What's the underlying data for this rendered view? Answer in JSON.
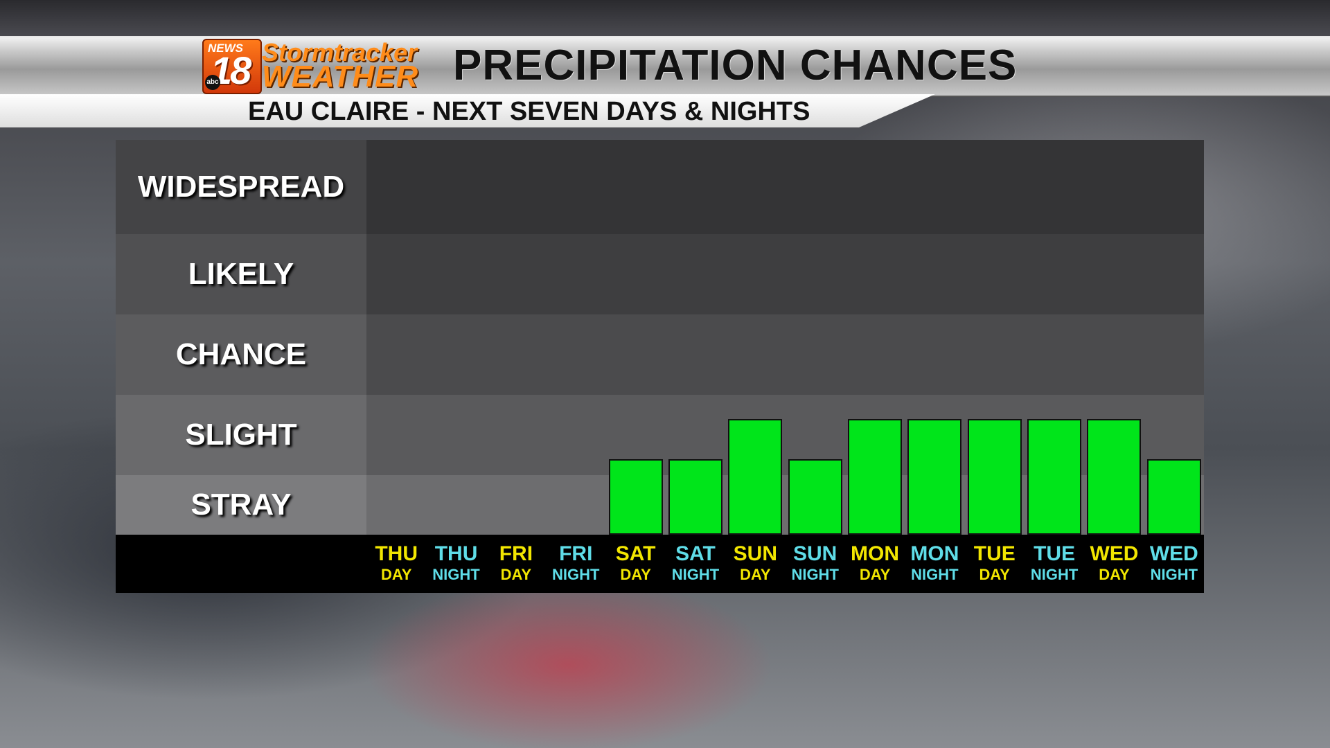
{
  "header": {
    "logo": {
      "news": "NEWS",
      "number": "18",
      "network": "abc",
      "line1": "Stormtracker",
      "line2": "WEATHER"
    },
    "title": "PRECIPITATION CHANCES",
    "subtitle": "EAU CLAIRE - NEXT SEVEN DAYS & NIGHTS"
  },
  "colors": {
    "bar": "#00e51a",
    "day_label": "#f2e600",
    "night_label": "#5fdde8",
    "bands": [
      "#343436",
      "#3e3e40",
      "#4b4b4d",
      "#5a5a5c",
      "#6d6d6f"
    ],
    "label_bands": [
      "#444446",
      "#505052",
      "#5c5c5e",
      "#6a6a6c",
      "#7c7c7e"
    ]
  },
  "chart_data": {
    "type": "bar",
    "title": "PRECIPITATION CHANCES",
    "subtitle": "EAU CLAIRE - NEXT SEVEN DAYS & NIGHTS",
    "y_categories": [
      "WIDESPREAD",
      "LIKELY",
      "CHANCE",
      "SLIGHT",
      "STRAY"
    ],
    "y_scale": "ordinal levels from bottom: 0 = none, 1 = STRAY, 2 = SLIGHT, 3 = CHANCE, 4 = LIKELY, 5 = WIDESPREAD",
    "categories": [
      {
        "day": "THU",
        "period": "DAY"
      },
      {
        "day": "THU",
        "period": "NIGHT"
      },
      {
        "day": "FRI",
        "period": "DAY"
      },
      {
        "day": "FRI",
        "period": "NIGHT"
      },
      {
        "day": "SAT",
        "period": "DAY"
      },
      {
        "day": "SAT",
        "period": "NIGHT"
      },
      {
        "day": "SUN",
        "period": "DAY"
      },
      {
        "day": "SUN",
        "period": "NIGHT"
      },
      {
        "day": "MON",
        "period": "DAY"
      },
      {
        "day": "MON",
        "period": "NIGHT"
      },
      {
        "day": "TUE",
        "period": "DAY"
      },
      {
        "day": "TUE",
        "period": "NIGHT"
      },
      {
        "day": "WED",
        "period": "DAY"
      },
      {
        "day": "WED",
        "period": "NIGHT"
      }
    ],
    "values": [
      0,
      0,
      0,
      0,
      1.2,
      1.2,
      1.7,
      1.2,
      1.7,
      1.7,
      1.7,
      1.7,
      1.7,
      1.2
    ],
    "ylim": [
      0,
      5
    ]
  }
}
